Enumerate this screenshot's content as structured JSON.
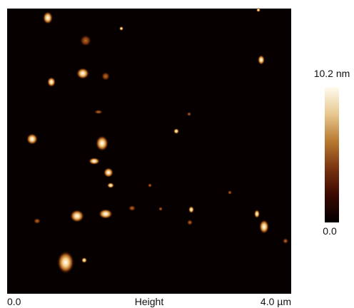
{
  "image": {
    "x_start_label": "0.0",
    "x_label": "Height",
    "x_end_label": "4.0 µm"
  },
  "colorbar": {
    "max_label": "10.2 nm",
    "min_label": "0.0"
  }
}
